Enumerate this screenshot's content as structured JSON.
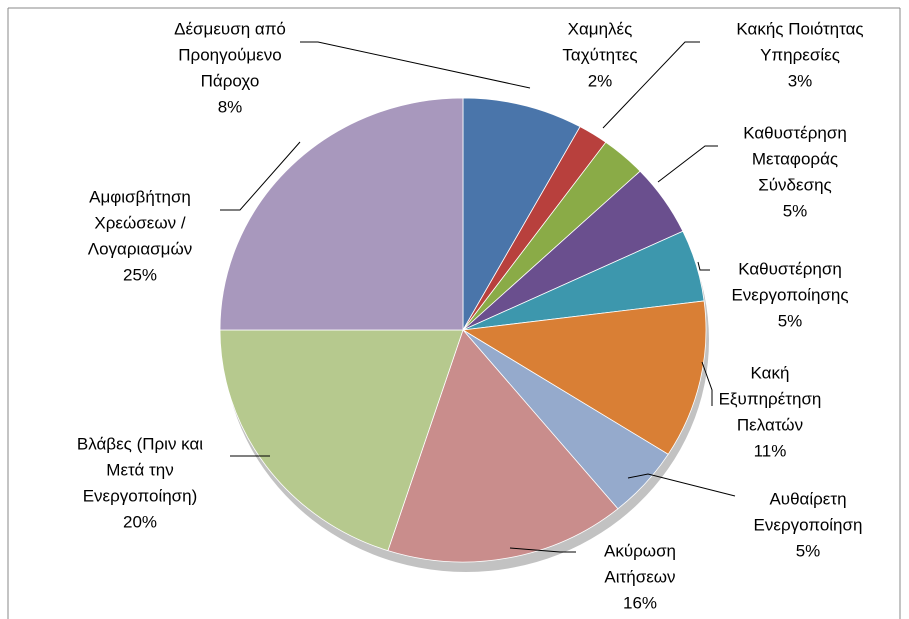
{
  "chart_data": {
    "type": "pie",
    "categories": [
      [
        "Δέσμευση από",
        "Προηγούμενο",
        "Πάροχο"
      ],
      [
        "Χαμηλές",
        "Ταχύτητες"
      ],
      [
        "Κακής Ποιότητας",
        "Υπηρεσίες"
      ],
      [
        "Καθυστέρηση",
        "Μεταφοράς",
        "Σύνδεσης"
      ],
      [
        "Καθυστέρηση",
        "Ενεργοποίησης"
      ],
      [
        "Κακή",
        "Εξυπηρέτηση",
        "Πελατών"
      ],
      [
        "Αυθαίρετη",
        "Ενεργοποίηση"
      ],
      [
        "Ακύρωση",
        "Αιτήσεων"
      ],
      [
        "Βλάβες (Πριν και",
        "Μετά την",
        "Ενεργοποίηση)"
      ],
      [
        "Αμφισβήτηση",
        "Χρεώσεων /",
        "Λογαριασμών"
      ]
    ],
    "values": [
      8,
      2,
      3,
      5,
      5,
      11,
      5,
      16,
      20,
      25
    ],
    "value_labels": [
      "8%",
      "2%",
      "3%",
      "5%",
      "5%",
      "11%",
      "5%",
      "16%",
      "20%",
      "25%"
    ],
    "colors": [
      "#4a75aa",
      "#b8403d",
      "#8aab47",
      "#6a4f8e",
      "#3d97ad",
      "#d97f35",
      "#95aacc",
      "#c98d8c",
      "#b6c98e",
      "#a898bd"
    ]
  }
}
